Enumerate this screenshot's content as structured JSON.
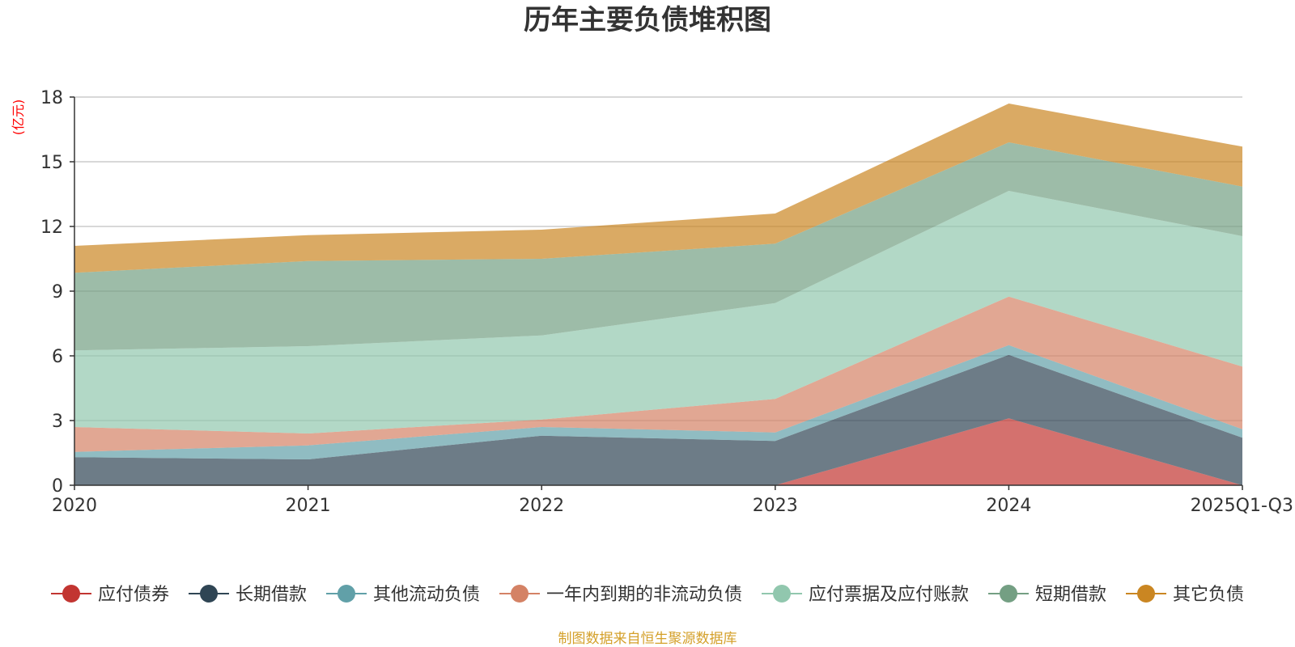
{
  "chart_data": {
    "type": "area",
    "stacked": true,
    "title": "历年主要负债堆积图",
    "unit_label": "(亿元)",
    "categories": [
      "2020",
      "2021",
      "2022",
      "2023",
      "2024",
      "2025Q1-Q3"
    ],
    "ylim": [
      0,
      18
    ],
    "yticks": [
      "0",
      "3",
      "6",
      "9",
      "12",
      "15",
      "18"
    ],
    "grid": true,
    "legend_position": "bottom",
    "series": [
      {
        "name": "应付债券",
        "values": [
          0,
          0,
          0,
          0,
          3.1,
          0
        ],
        "color": "#c23531"
      },
      {
        "name": "长期借款",
        "values": [
          1.3,
          1.2,
          2.3,
          2.05,
          2.95,
          2.2
        ],
        "color": "#2f4554"
      },
      {
        "name": "其他流动负债",
        "values": [
          0.25,
          0.65,
          0.4,
          0.4,
          0.45,
          0.4
        ],
        "color": "#61a0a8"
      },
      {
        "name": "一年内到期的非流动负债",
        "values": [
          1.15,
          0.55,
          0.35,
          1.55,
          2.25,
          2.9
        ],
        "color": "#d48265"
      },
      {
        "name": "应付票据及应付账款",
        "values": [
          3.55,
          4.05,
          3.9,
          4.45,
          4.9,
          6.05
        ],
        "color": "#91c7ae"
      },
      {
        "name": "短期借款",
        "values": [
          3.6,
          3.95,
          3.55,
          2.75,
          2.25,
          2.3
        ],
        "color": "#749f83"
      },
      {
        "name": "其它负债",
        "values": [
          1.25,
          1.2,
          1.35,
          1.4,
          1.8,
          1.85
        ],
        "color": "#ca8622"
      }
    ],
    "source_note": "制图数据来自恒生聚源数据库"
  }
}
